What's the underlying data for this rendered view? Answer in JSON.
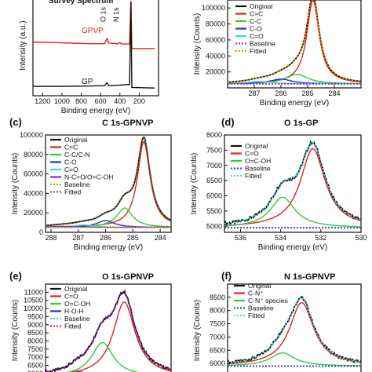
{
  "chart_data": [
    {
      "panel": "a",
      "type": "line",
      "title": "Survey Spectrum",
      "xlabel": "Binding energy (eV)",
      "ylabel": "Intensity (a.u.)",
      "xlim": [
        1300,
        0
      ],
      "xticks": [
        1200,
        1000,
        800,
        600,
        400,
        200
      ],
      "annotations": [
        "O 1s",
        "N 1s"
      ],
      "series": [
        {
          "name": "GPVP",
          "color": "#e0211f",
          "points": [
            [
              1300,
              0.91
            ],
            [
              1100,
              0.9
            ],
            [
              900,
              0.89
            ],
            [
              700,
              0.88
            ],
            [
              560,
              0.88
            ],
            [
              532,
              0.97
            ],
            [
              515,
              0.89
            ],
            [
              420,
              0.88
            ],
            [
              400,
              0.9
            ],
            [
              385,
              0.875
            ],
            [
              300,
              0.875
            ],
            [
              286,
              1.6
            ],
            [
              276,
              0.8
            ],
            [
              150,
              0.8
            ],
            [
              40,
              0.8
            ]
          ]
        },
        {
          "name": "GP",
          "color": "#111111",
          "points": [
            [
              1300,
              0.16
            ],
            [
              1000,
              0.16
            ],
            [
              700,
              0.165
            ],
            [
              560,
              0.17
            ],
            [
              532,
              0.22
            ],
            [
              515,
              0.17
            ],
            [
              300,
              0.19
            ],
            [
              286,
              1.6
            ],
            [
              276,
              0.14
            ],
            [
              40,
              0.13
            ]
          ]
        }
      ]
    },
    {
      "panel": "b",
      "type": "line",
      "title": "",
      "xlabel": "Binding energy (eV)",
      "ylabel": "Intensity (Counts)",
      "xlim": [
        288,
        283
      ],
      "ylim": [
        0,
        110000
      ],
      "yticks": [
        20000,
        40000,
        60000,
        80000,
        100000
      ],
      "xticks": [
        287,
        286,
        285,
        284
      ],
      "legend": [
        "Original",
        "C=C",
        "C-C",
        "C-O",
        "C=O",
        "Baseline",
        "Fitted"
      ],
      "series": [
        {
          "name": "Original",
          "color": "#111111",
          "style": "solid",
          "peaks": [
            [
              284.8,
              105000,
              0.28
            ],
            [
              285.4,
              12000,
              0.5
            ],
            [
              286.0,
              6000,
              0.5
            ],
            [
              286.8,
              3000,
              0.6
            ]
          ],
          "base": 5000
        },
        {
          "name": "C=C",
          "color": "#e0211f",
          "style": "solid",
          "peaks": [
            [
              284.8,
              105000,
              0.28
            ]
          ],
          "base": 5000
        },
        {
          "name": "C-C",
          "color": "#33cc33",
          "style": "solid",
          "peaks": [
            [
              285.4,
              12000,
              0.5
            ]
          ],
          "base": 5000
        },
        {
          "name": "C-O",
          "color": "#2233cc",
          "style": "solid",
          "peaks": [
            [
              286.0,
              6000,
              0.5
            ]
          ],
          "base": 5000
        },
        {
          "name": "C=O",
          "color": "#33dddd",
          "style": "solid",
          "peaks": [
            [
              286.8,
              3000,
              0.6
            ]
          ],
          "base": 5000
        },
        {
          "name": "Baseline",
          "color": "#9922cc",
          "style": "dotted",
          "peaks": [],
          "base": 5000
        },
        {
          "name": "Fitted",
          "color": "#d99a00",
          "style": "dotted",
          "peaks": [
            [
              284.8,
              105000,
              0.28
            ],
            [
              285.4,
              12000,
              0.5
            ],
            [
              286.0,
              6000,
              0.5
            ],
            [
              286.8,
              3000,
              0.6
            ]
          ],
          "base": 5000
        }
      ]
    },
    {
      "panel": "c",
      "type": "line",
      "title": "C 1s-GPNVP",
      "xlabel": "Binding energy (eV)",
      "ylabel": "Intensity (Counts)",
      "xlim": [
        288.2,
        283.6
      ],
      "ylim": [
        0,
        100000
      ],
      "yticks": [
        0,
        20000,
        40000,
        60000,
        80000,
        100000
      ],
      "xticks": [
        288,
        287,
        286,
        285,
        284
      ],
      "legend": [
        "Original",
        "C=C",
        "C-C/C-N",
        "C-O",
        "C=O",
        "N-C=O/O=C-OH",
        "Baseline",
        "Fitted"
      ],
      "series": [
        {
          "name": "Original",
          "color": "#111111",
          "style": "solid",
          "peaks": [
            [
              284.6,
              88000,
              0.28
            ],
            [
              285.3,
              20000,
              0.35
            ],
            [
              286.0,
              7000,
              0.4
            ],
            [
              286.8,
              2500,
              0.5
            ],
            [
              287.6,
              1200,
              0.6
            ]
          ],
          "base": 5000
        },
        {
          "name": "C=C",
          "color": "#e0211f",
          "style": "solid",
          "peaks": [
            [
              284.6,
              88000,
              0.28
            ]
          ],
          "base": 5000
        },
        {
          "name": "C-C/C-N",
          "color": "#33cc33",
          "style": "solid",
          "peaks": [
            [
              285.3,
              20000,
              0.35
            ]
          ],
          "base": 5000
        },
        {
          "name": "C-O",
          "color": "#2233cc",
          "style": "solid",
          "peaks": [
            [
              286.0,
              7000,
              0.4
            ]
          ],
          "base": 5000
        },
        {
          "name": "C=O",
          "color": "#33dddd",
          "style": "solid",
          "peaks": [
            [
              286.8,
              2500,
              0.5
            ]
          ],
          "base": 5000
        },
        {
          "name": "N-C=O/O=C-OH",
          "color": "#9922cc",
          "style": "solid",
          "peaks": [
            [
              287.6,
              1200,
              0.6
            ]
          ],
          "base": 5000
        },
        {
          "name": "Baseline",
          "color": "#d99a00",
          "style": "dotted",
          "peaks": [],
          "base": 5000
        },
        {
          "name": "Fitted",
          "color": "#556b2f",
          "style": "dotted",
          "peaks": [
            [
              284.6,
              88000,
              0.28
            ],
            [
              285.3,
              20000,
              0.35
            ],
            [
              286.0,
              7000,
              0.4
            ],
            [
              286.8,
              2500,
              0.5
            ],
            [
              287.6,
              1200,
              0.6
            ]
          ],
          "base": 5000
        }
      ]
    },
    {
      "panel": "d",
      "type": "line",
      "title": "O 1s-GP",
      "xlabel": "Binding energy (eV)",
      "ylabel": "Intensity (Counts)",
      "xlim": [
        536.8,
        530
      ],
      "ylim": [
        4800,
        8000
      ],
      "yticks": [
        5000,
        5500,
        6000,
        6500,
        7000,
        7500,
        8000
      ],
      "xticks": [
        536,
        534,
        532,
        530
      ],
      "legend": [
        "Original",
        "C=O",
        "O=C-OH",
        "Baseline",
        "Fitted"
      ],
      "series": [
        {
          "name": "Original",
          "color": "#111111",
          "style": "solid",
          "noise": true,
          "peaks": [
            [
              532.4,
              2600,
              0.75
            ],
            [
              533.9,
              1000,
              0.75
            ]
          ],
          "base": 4950
        },
        {
          "name": "C=O",
          "color": "#e0211f",
          "style": "solid",
          "peaks": [
            [
              532.4,
              2600,
              0.75
            ]
          ],
          "base": 4950
        },
        {
          "name": "O=C-OH",
          "color": "#33cc33",
          "style": "solid",
          "peaks": [
            [
              533.9,
              1000,
              0.75
            ]
          ],
          "base": 4950
        },
        {
          "name": "Baseline",
          "color": "#2233cc",
          "style": "dotted",
          "peaks": [],
          "base": 4950
        },
        {
          "name": "Fitted",
          "color": "#33dddd",
          "style": "dotted",
          "peaks": [
            [
              532.4,
              2600,
              0.75
            ],
            [
              533.9,
              1000,
              0.75
            ]
          ],
          "base": 4950
        }
      ]
    },
    {
      "panel": "e",
      "type": "line",
      "title": "O 1s-GPNVP",
      "xlabel": "Binding energy (eV)",
      "ylabel": "Intensity (Counts)",
      "xlim": [
        537,
        529.5
      ],
      "ylim": [
        5800,
        11500
      ],
      "yticks": [
        6000,
        6500,
        7000,
        7500,
        8000,
        8500,
        9000,
        9500,
        10000,
        10500,
        11000
      ],
      "legend": [
        "Original",
        "C=O",
        "O=C-OH",
        "H-O-H",
        "Baseline",
        "Fitted"
      ],
      "series": [
        {
          "name": "Original",
          "color": "#111111",
          "style": "solid",
          "noise": true,
          "peaks": [
            [
              532.3,
              4600,
              0.8
            ],
            [
              533.6,
              2100,
              0.8
            ],
            [
              535.0,
              300,
              0.8
            ]
          ],
          "base": 5800
        },
        {
          "name": "C=O",
          "color": "#e0211f",
          "style": "solid",
          "peaks": [
            [
              532.3,
              4600,
              0.8
            ]
          ],
          "base": 5800
        },
        {
          "name": "O=C-OH",
          "color": "#33cc33",
          "style": "solid",
          "peaks": [
            [
              533.6,
              2100,
              0.8
            ]
          ],
          "base": 5800
        },
        {
          "name": "H-O-H",
          "color": "#2233cc",
          "style": "solid",
          "peaks": [
            [
              535.0,
              300,
              0.8
            ]
          ],
          "base": 5800
        },
        {
          "name": "Baseline",
          "color": "#33dddd",
          "style": "dotted",
          "peaks": [],
          "base": 5800
        },
        {
          "name": "Fitted",
          "color": "#9922cc",
          "style": "dotted",
          "peaks": [
            [
              532.3,
              4600,
              0.8
            ],
            [
              533.6,
              2100,
              0.8
            ],
            [
              535.0,
              300,
              0.8
            ]
          ],
          "base": 5800
        }
      ]
    },
    {
      "panel": "f",
      "type": "line",
      "title": "N 1s-GPNVP",
      "xlabel": "Binding energy (eV)",
      "ylabel": "Intensity (Counts)",
      "xlim": [
        405,
        396
      ],
      "ylim": [
        5500,
        9000
      ],
      "yticks": [
        6000,
        6500,
        7000,
        7500,
        8000,
        8500
      ],
      "legend": [
        "Original",
        "C-N⁺",
        "C-N⁺ species",
        "Baseline",
        "Fitted"
      ],
      "series": [
        {
          "name": "Original",
          "color": "#111111",
          "style": "solid",
          "noise": true,
          "peaks": [
            [
              400.0,
              2400,
              1.0
            ],
            [
              401.3,
              500,
              1.0
            ]
          ],
          "base": 5900
        },
        {
          "name": "C-N⁺",
          "color": "#e0211f",
          "style": "solid",
          "peaks": [
            [
              400.0,
              2400,
              1.0
            ]
          ],
          "base": 5900
        },
        {
          "name": "C-N⁺ species",
          "color": "#33cc33",
          "style": "solid",
          "peaks": [
            [
              401.3,
              500,
              1.0
            ]
          ],
          "base": 5900
        },
        {
          "name": "Baseline",
          "color": "#2233cc",
          "style": "dotted",
          "peaks": [],
          "base": 5900
        },
        {
          "name": "Fitted",
          "color": "#33dddd",
          "style": "dotted",
          "peaks": [
            [
              400.0,
              2400,
              1.0
            ],
            [
              401.3,
              500,
              1.0
            ]
          ],
          "base": 5900
        }
      ]
    }
  ]
}
